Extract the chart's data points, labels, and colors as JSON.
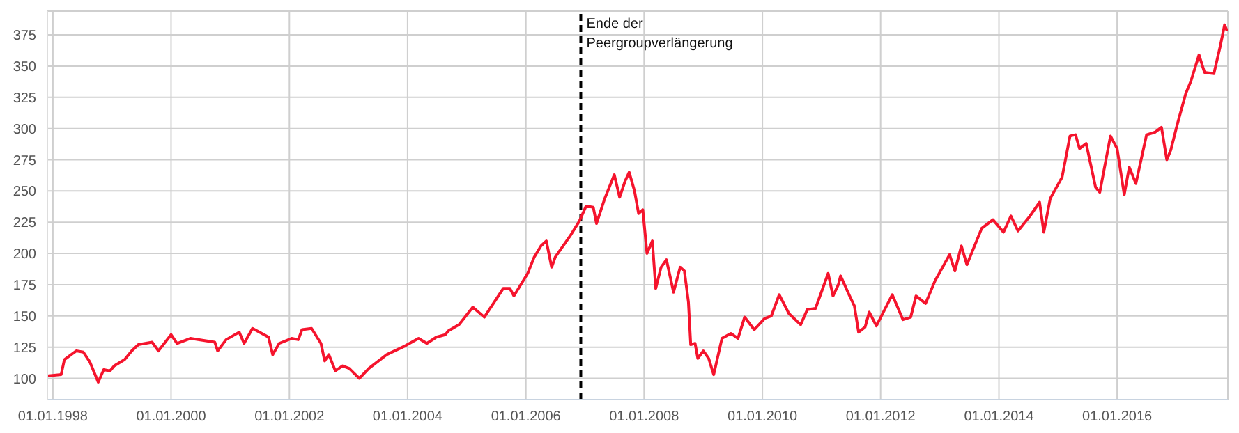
{
  "chart_data": {
    "type": "line",
    "xlim": [
      "1997-11-28",
      "2017-11-15"
    ],
    "ylim": [
      83,
      394
    ],
    "yticks": [
      100,
      125,
      150,
      175,
      200,
      225,
      250,
      275,
      300,
      325,
      350,
      375
    ],
    "xticks": [
      {
        "value": "1998-01-01",
        "label": "01.01.1998"
      },
      {
        "value": "2000-01-01",
        "label": "01.01.2000"
      },
      {
        "value": "2002-01-01",
        "label": "01.01.2002"
      },
      {
        "value": "2004-01-01",
        "label": "01.01.2004"
      },
      {
        "value": "2006-01-01",
        "label": "01.01.2006"
      },
      {
        "value": "2008-01-01",
        "label": "01.01.2008"
      },
      {
        "value": "2010-01-01",
        "label": "01.01.2010"
      },
      {
        "value": "2012-01-01",
        "label": "01.01.2012"
      },
      {
        "value": "2014-01-01",
        "label": "01.01.2014"
      },
      {
        "value": "2016-01-01",
        "label": "01.01.2016"
      }
    ],
    "grid": true,
    "marker": "none",
    "line_style": "solid",
    "ref_lines": [
      {
        "axis": "x",
        "value": "2006-12-06",
        "label": "Ende der Peergroupverlängerung",
        "color": "#000000",
        "line_style": "dashed"
      }
    ],
    "series": [
      {
        "color": "#f5142d",
        "x": [
          "1997-11-28",
          "1998-02-21",
          "1998-03-13",
          "1998-05-25",
          "1998-07-08",
          "1998-08-18",
          "1998-10-08",
          "1998-11-11",
          "1998-12-20",
          "1999-01-15",
          "1999-03-20",
          "1999-05-03",
          "1999-06-13",
          "1999-09-06",
          "1999-10-15",
          "2000-01-01",
          "2000-02-07",
          "2000-04-29",
          "2000-09-27",
          "2000-10-15",
          "2000-12-06",
          "2001-02-25",
          "2001-03-27",
          "2001-05-18",
          "2001-07-15",
          "2001-08-25",
          "2001-09-20",
          "2001-10-30",
          "2002-01-15",
          "2002-02-25",
          "2002-03-20",
          "2002-05-18",
          "2002-07-15",
          "2002-08-07",
          "2002-09-02",
          "2002-10-12",
          "2002-11-25",
          "2003-01-05",
          "2003-03-09",
          "2003-05-07",
          "2003-08-25",
          "2003-12-17",
          "2004-03-09",
          "2004-04-29",
          "2004-06-27",
          "2004-08-21",
          "2004-09-09",
          "2004-11-14",
          "2005-02-07",
          "2005-04-19",
          "2005-08-14",
          "2005-09-24",
          "2005-10-19",
          "2006-01-12",
          "2006-02-21",
          "2006-04-04",
          "2006-05-07",
          "2006-06-09",
          "2006-07-01",
          "2006-10-01",
          "2006-11-28",
          "2007-01-08",
          "2007-02-21",
          "2007-03-13",
          "2007-05-03",
          "2007-07-01",
          "2007-08-03",
          "2007-09-06",
          "2007-10-01",
          "2007-11-03",
          "2007-11-28",
          "2007-12-24",
          "2008-01-19",
          "2008-02-21",
          "2008-03-13",
          "2008-04-15",
          "2008-05-18",
          "2008-07-01",
          "2008-08-11",
          "2008-09-06",
          "2008-10-01",
          "2008-10-15",
          "2008-11-11",
          "2008-11-28",
          "2009-01-01",
          "2009-02-03",
          "2009-03-06",
          "2009-04-26",
          "2009-06-20",
          "2009-08-03",
          "2009-09-13",
          "2009-11-11",
          "2010-01-15",
          "2010-02-25",
          "2010-04-15",
          "2010-06-13",
          "2010-08-25",
          "2010-10-05",
          "2010-11-25",
          "2011-02-11",
          "2011-03-13",
          "2011-04-15",
          "2011-04-29",
          "2011-06-20",
          "2011-07-23",
          "2011-08-18",
          "2011-09-27",
          "2011-10-23",
          "2011-12-06",
          "2012-03-13",
          "2012-05-18",
          "2012-07-05",
          "2012-08-07",
          "2012-10-05",
          "2012-12-02",
          "2013-03-02",
          "2013-04-04",
          "2013-05-14",
          "2013-06-17",
          "2013-09-16",
          "2013-11-25",
          "2014-01-29",
          "2014-03-16",
          "2014-04-29",
          "2014-07-12",
          "2014-09-09",
          "2014-10-05",
          "2014-11-14",
          "2015-01-26",
          "2015-03-16",
          "2015-04-19",
          "2015-05-14",
          "2015-06-24",
          "2015-08-21",
          "2015-09-16",
          "2015-11-21",
          "2016-01-01",
          "2016-02-14",
          "2016-03-16",
          "2016-04-26",
          "2016-07-01",
          "2016-08-21",
          "2016-10-01",
          "2016-11-03",
          "2016-11-28",
          "2017-01-08",
          "2017-02-28",
          "2017-04-01",
          "2017-05-21",
          "2017-06-24",
          "2017-08-21",
          "2017-10-01",
          "2017-10-26",
          "2017-11-11"
        ],
        "values": [
          102,
          103,
          115,
          122,
          121,
          113,
          97,
          107,
          106,
          110,
          115,
          122,
          127,
          129,
          122,
          135,
          128,
          132,
          129,
          122,
          131,
          137,
          128,
          140,
          136,
          133,
          119,
          128,
          132,
          131,
          139,
          140,
          128,
          114,
          119,
          106,
          110,
          108,
          100,
          108,
          119,
          126,
          132,
          128,
          133,
          135,
          138,
          143,
          157,
          149,
          172,
          172,
          166,
          184,
          197,
          206,
          210,
          189,
          197,
          214,
          226,
          238,
          237,
          224,
          244,
          263,
          245,
          258,
          265,
          250,
          232,
          235,
          200,
          210,
          172,
          189,
          195,
          169,
          189,
          186,
          161,
          127,
          128,
          116,
          122,
          116,
          103,
          132,
          136,
          132,
          149,
          139,
          148,
          150,
          167,
          152,
          143,
          155,
          156,
          184,
          166,
          175,
          182,
          167,
          158,
          137,
          141,
          153,
          142,
          167,
          147,
          149,
          166,
          160,
          178,
          199,
          186,
          206,
          191,
          220,
          227,
          217,
          230,
          218,
          230,
          241,
          217,
          244,
          261,
          294,
          295,
          284,
          288,
          253,
          249,
          294,
          284,
          247,
          269,
          256,
          295,
          297,
          301,
          275,
          283,
          304,
          328,
          338,
          359,
          345,
          344,
          367,
          383,
          378
        ]
      }
    ]
  }
}
